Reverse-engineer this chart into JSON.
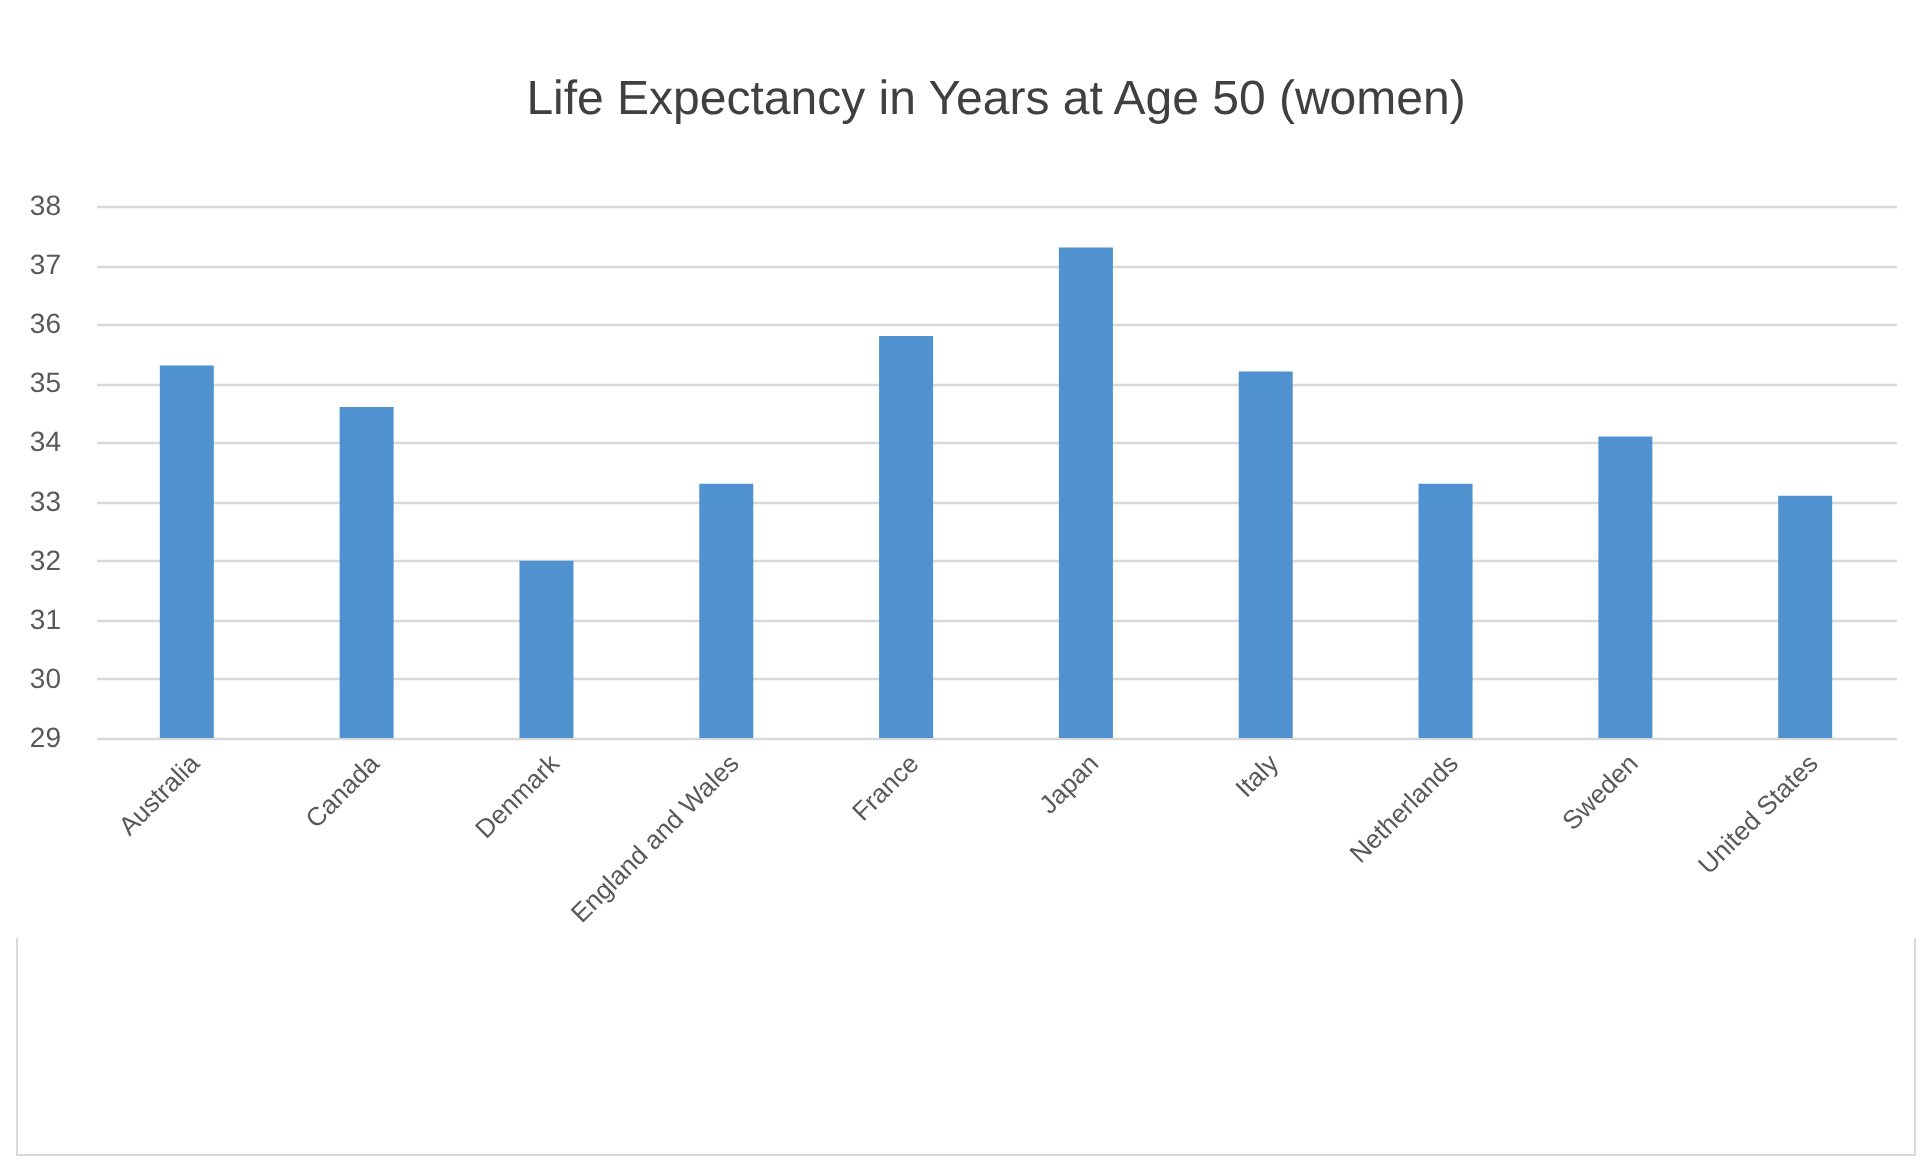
{
  "chart_data": {
    "type": "bar",
    "title": "Life Expectancy in Years at Age 50 (women)",
    "categories": [
      "Australia",
      "Canada",
      "Denmark",
      "England and Wales",
      "France",
      "Japan",
      "Italy",
      "Netherlands",
      "Sweden",
      "United States"
    ],
    "values": [
      35.3,
      34.6,
      32.0,
      33.3,
      35.8,
      37.3,
      35.2,
      33.3,
      34.1,
      33.1
    ],
    "color": "#5092d0",
    "ylim": [
      29,
      38
    ],
    "yticks": [
      29,
      30,
      31,
      32,
      33,
      34,
      35,
      36,
      37,
      38
    ],
    "grid": "y"
  }
}
